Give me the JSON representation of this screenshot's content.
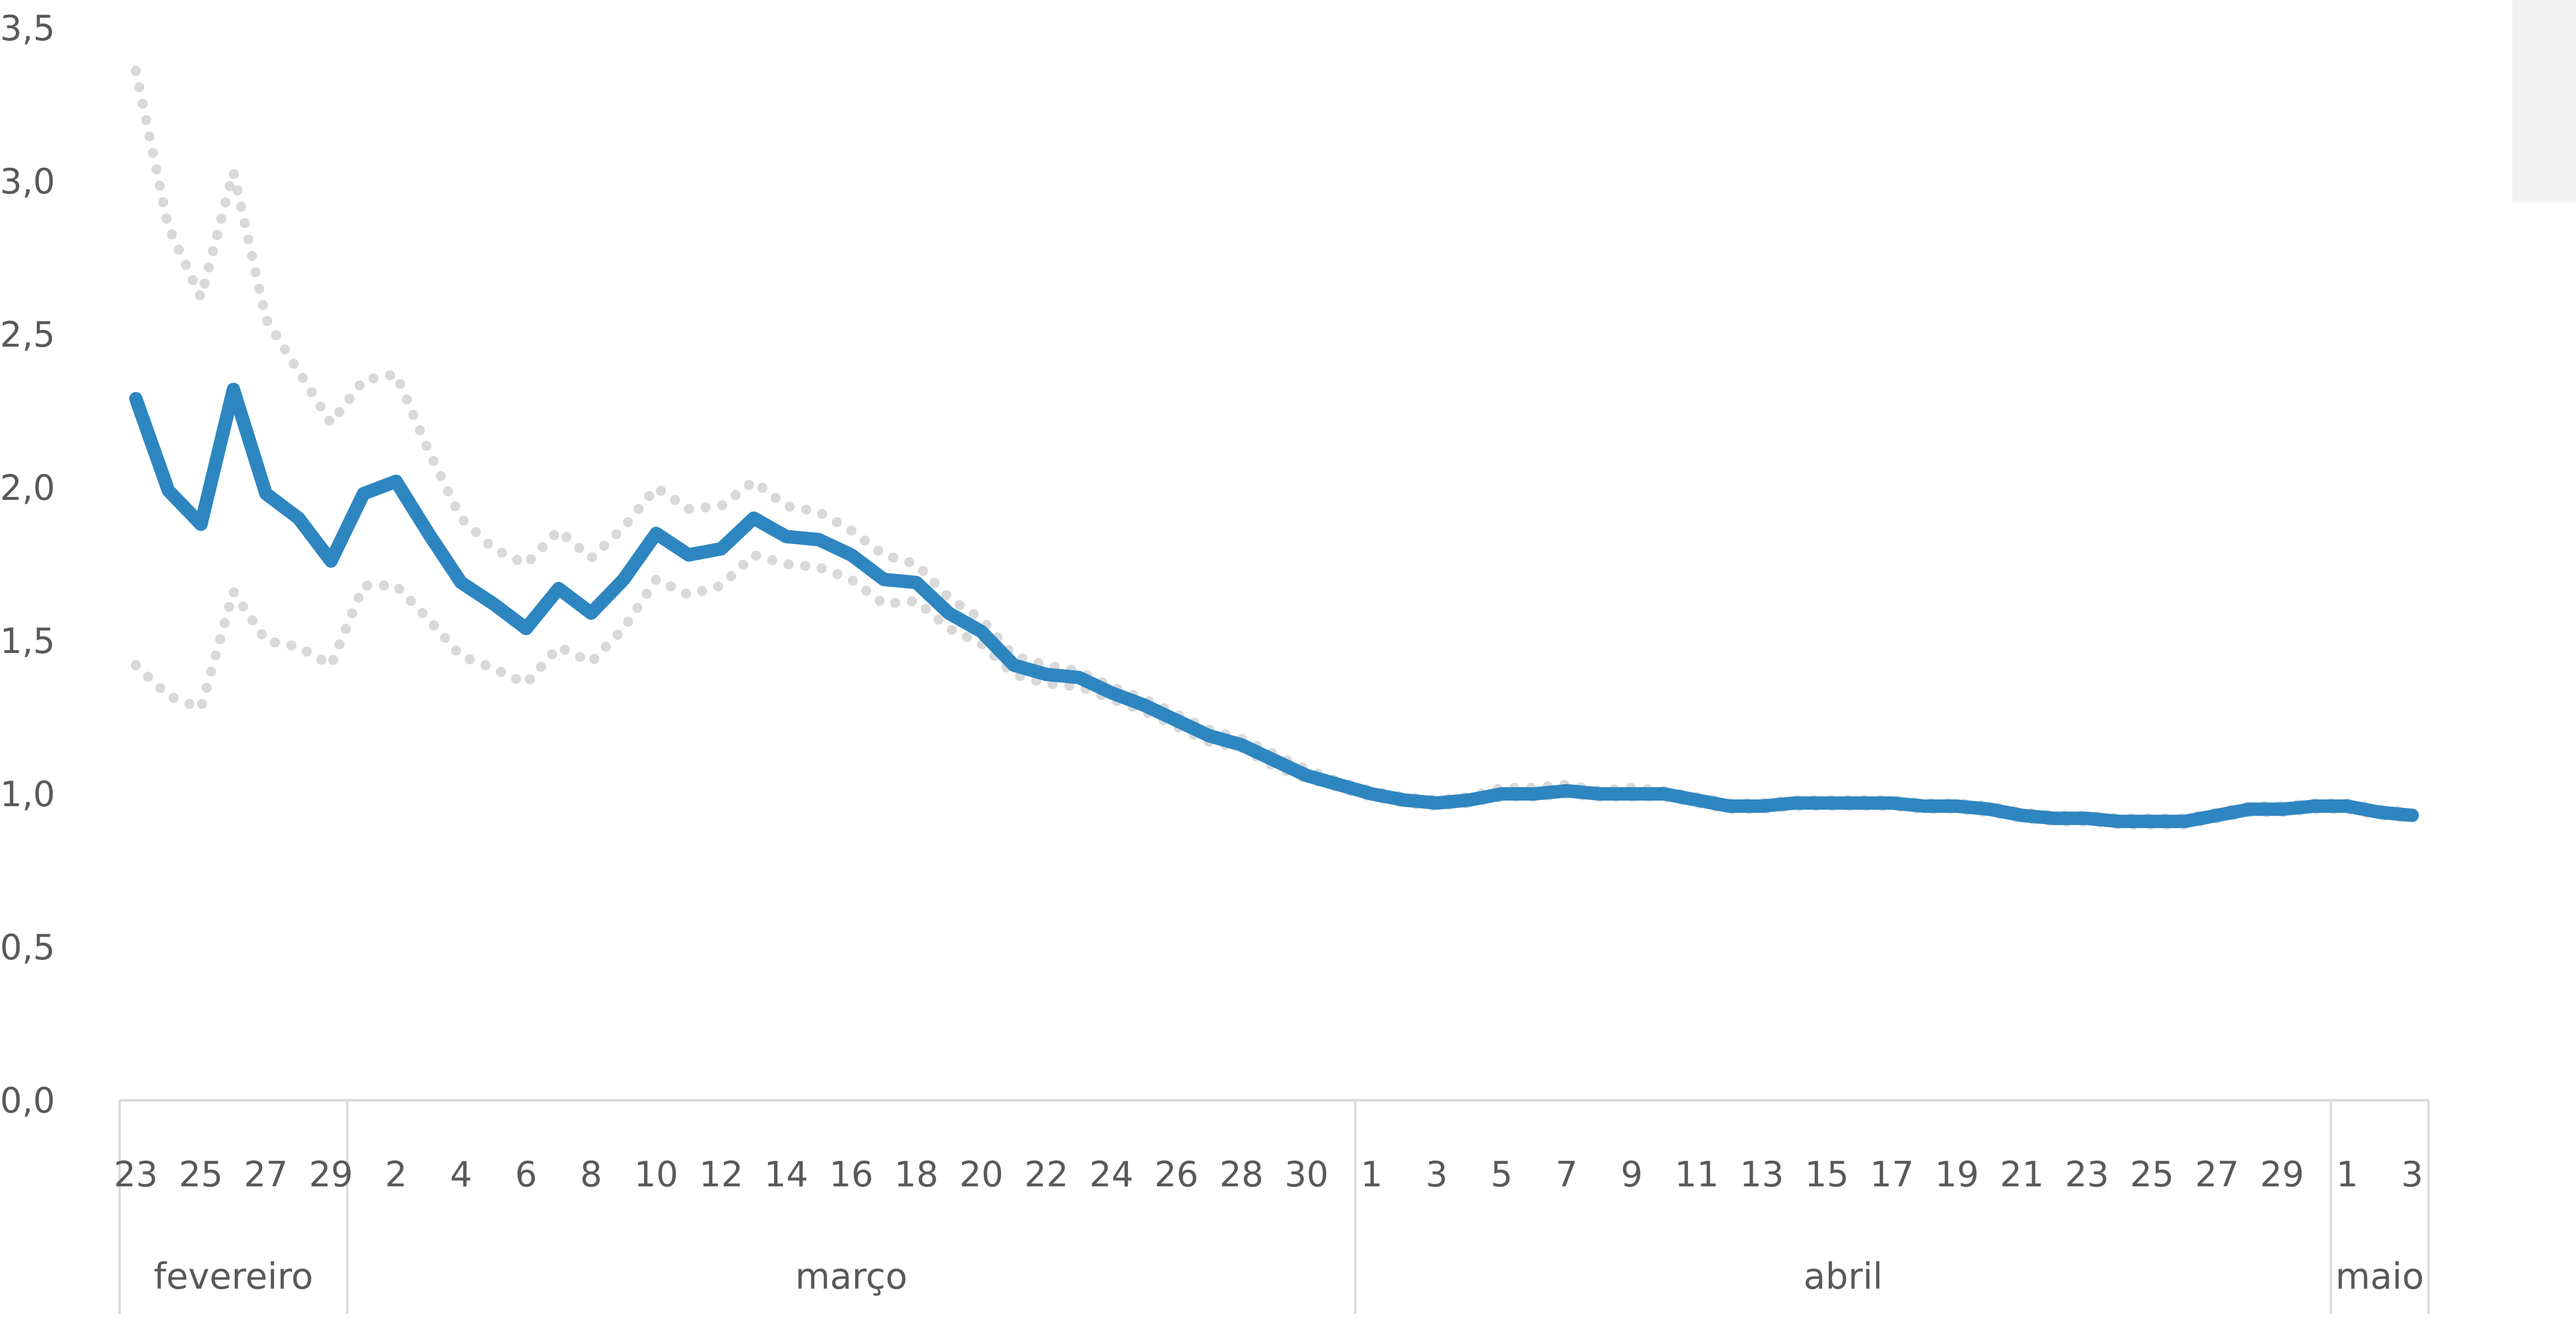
{
  "chart_data": {
    "type": "line",
    "title": "",
    "xlabel": "",
    "ylabel": "",
    "ylim": [
      0,
      3.5
    ],
    "yticks": [
      "0,0",
      "0,5",
      "1,0",
      "1,5",
      "2,0",
      "2,5",
      "3,0",
      "3,5"
    ],
    "grid": false,
    "months": [
      {
        "name": "fevereiro",
        "start": 0,
        "count": 7
      },
      {
        "name": "março",
        "start": 7,
        "count": 31
      },
      {
        "name": "abril",
        "start": 38,
        "count": 30
      },
      {
        "name": "maio",
        "start": 68,
        "count": 3
      }
    ],
    "x": [
      "23",
      "24",
      "25",
      "26",
      "27",
      "28",
      "29",
      "1",
      "2",
      "3",
      "4",
      "5",
      "6",
      "7",
      "8",
      "9",
      "10",
      "11",
      "12",
      "13",
      "14",
      "15",
      "16",
      "17",
      "18",
      "19",
      "20",
      "21",
      "22",
      "23",
      "24",
      "25",
      "26",
      "27",
      "28",
      "29",
      "30",
      "31",
      "1",
      "2",
      "3",
      "4",
      "5",
      "6",
      "7",
      "8",
      "9",
      "10",
      "11",
      "12",
      "13",
      "14",
      "15",
      "16",
      "17",
      "18",
      "19",
      "20",
      "21",
      "22",
      "23",
      "24",
      "25",
      "26",
      "27",
      "28",
      "29",
      "30",
      "1",
      "2",
      "3"
    ],
    "x_tick_labels": [
      {
        "i": 0,
        "label": "23"
      },
      {
        "i": 2,
        "label": "25"
      },
      {
        "i": 4,
        "label": "27"
      },
      {
        "i": 6,
        "label": "29"
      },
      {
        "i": 8,
        "label": "2"
      },
      {
        "i": 10,
        "label": "4"
      },
      {
        "i": 12,
        "label": "6"
      },
      {
        "i": 14,
        "label": "8"
      },
      {
        "i": 16,
        "label": "10"
      },
      {
        "i": 18,
        "label": "12"
      },
      {
        "i": 20,
        "label": "14"
      },
      {
        "i": 22,
        "label": "16"
      },
      {
        "i": 24,
        "label": "18"
      },
      {
        "i": 26,
        "label": "20"
      },
      {
        "i": 28,
        "label": "22"
      },
      {
        "i": 30,
        "label": "24"
      },
      {
        "i": 32,
        "label": "26"
      },
      {
        "i": 34,
        "label": "28"
      },
      {
        "i": 36,
        "label": "30"
      },
      {
        "i": 38,
        "label": "1"
      },
      {
        "i": 40,
        "label": "3"
      },
      {
        "i": 42,
        "label": "5"
      },
      {
        "i": 44,
        "label": "7"
      },
      {
        "i": 46,
        "label": "9"
      },
      {
        "i": 48,
        "label": "11"
      },
      {
        "i": 50,
        "label": "13"
      },
      {
        "i": 52,
        "label": "15"
      },
      {
        "i": 54,
        "label": "17"
      },
      {
        "i": 56,
        "label": "19"
      },
      {
        "i": 58,
        "label": "21"
      },
      {
        "i": 60,
        "label": "23"
      },
      {
        "i": 62,
        "label": "25"
      },
      {
        "i": 64,
        "label": "27"
      },
      {
        "i": 66,
        "label": "29"
      },
      {
        "i": 68,
        "label": "1"
      },
      {
        "i": 70,
        "label": "3"
      }
    ],
    "series": [
      {
        "role": "estimate",
        "color": "#2e86c1",
        "style": "solid",
        "values": [
          2.29,
          1.99,
          1.88,
          2.32,
          1.98,
          1.9,
          1.76,
          1.98,
          2.02,
          1.85,
          1.69,
          1.62,
          1.54,
          1.67,
          1.59,
          1.7,
          1.85,
          1.78,
          1.8,
          1.9,
          1.84,
          1.83,
          1.78,
          1.7,
          1.69,
          1.59,
          1.53,
          1.42,
          1.39,
          1.38,
          1.33,
          1.29,
          1.24,
          1.19,
          1.16,
          1.11,
          1.06,
          1.03,
          1.0,
          0.98,
          0.97,
          0.98,
          1.0,
          1.0,
          1.01,
          1.0,
          1.0,
          1.0,
          0.98,
          0.96,
          0.96,
          0.97,
          0.97,
          0.97,
          0.97,
          0.96,
          0.96,
          0.95,
          0.93,
          0.92,
          0.92,
          0.91,
          0.91,
          0.91,
          0.93,
          0.95,
          0.95,
          0.96,
          0.96,
          0.94,
          0.93
        ]
      },
      {
        "role": "upper",
        "color": "#d9d9d9",
        "style": "dotted",
        "values": [
          3.36,
          2.85,
          2.62,
          3.03,
          2.55,
          2.38,
          2.21,
          2.35,
          2.37,
          2.12,
          1.9,
          1.8,
          1.75,
          1.86,
          1.77,
          1.87,
          2.0,
          1.93,
          1.94,
          2.02,
          1.94,
          1.92,
          1.86,
          1.78,
          1.75,
          1.64,
          1.57,
          1.45,
          1.42,
          1.4,
          1.35,
          1.31,
          1.26,
          1.21,
          1.18,
          1.13,
          1.08,
          1.04,
          1.01,
          0.99,
          0.98,
          0.99,
          1.02,
          1.02,
          1.03,
          1.01,
          1.02,
          1.01,
          0.99,
          0.97,
          0.97,
          0.98,
          0.98,
          0.98,
          0.98,
          0.97,
          0.97,
          0.96,
          0.94,
          0.93,
          0.93,
          0.92,
          0.92,
          0.92,
          0.94,
          0.96,
          0.96,
          0.97,
          0.97,
          0.95,
          0.94
        ]
      },
      {
        "role": "lower",
        "color": "#d9d9d9",
        "style": "dotted",
        "values": [
          1.42,
          1.32,
          1.28,
          1.66,
          1.5,
          1.48,
          1.42,
          1.68,
          1.68,
          1.57,
          1.45,
          1.41,
          1.36,
          1.48,
          1.43,
          1.54,
          1.7,
          1.65,
          1.68,
          1.78,
          1.75,
          1.74,
          1.7,
          1.62,
          1.63,
          1.54,
          1.49,
          1.39,
          1.36,
          1.35,
          1.31,
          1.27,
          1.22,
          1.17,
          1.15,
          1.09,
          1.05,
          1.02,
          0.99,
          0.97,
          0.96,
          0.97,
          0.99,
          0.99,
          1.0,
          0.99,
          0.99,
          0.99,
          0.97,
          0.95,
          0.95,
          0.96,
          0.96,
          0.96,
          0.96,
          0.95,
          0.95,
          0.94,
          0.92,
          0.91,
          0.91,
          0.9,
          0.9,
          0.9,
          0.92,
          0.94,
          0.94,
          0.95,
          0.95,
          0.93,
          0.92
        ]
      }
    ]
  }
}
